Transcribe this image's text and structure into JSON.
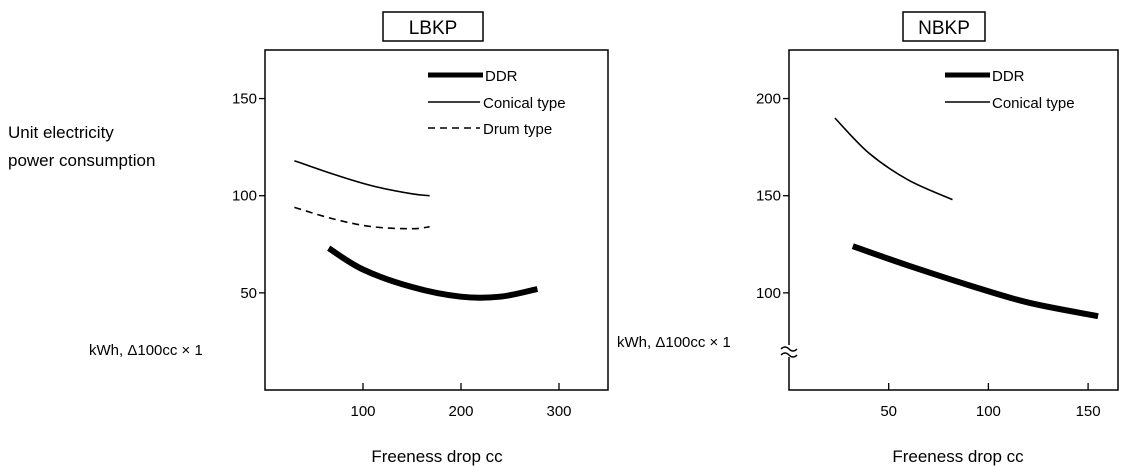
{
  "page": {
    "y_axis_label_line1": "Unit electricity",
    "y_axis_label_line2": "power consumption"
  },
  "chart_data": [
    {
      "type": "line",
      "title": "LBKP",
      "xlabel": "Freeness drop cc",
      "ylabel": "kWh, Δ100cc × 1",
      "xlim": [
        0,
        350
      ],
      "ylim": [
        0,
        175
      ],
      "x_ticks": [
        100,
        200,
        300
      ],
      "y_ticks": [
        50,
        100,
        150
      ],
      "x_tick_labels": [
        "100",
        "200",
        "300"
      ],
      "y_tick_labels": [
        "50",
        "100",
        "150"
      ],
      "legend_position": "top-right",
      "series": [
        {
          "name": "DDR",
          "style": "thick-solid",
          "x": [
            65,
            100,
            150,
            200,
            240,
            278
          ],
          "y": [
            73,
            62,
            53,
            48,
            48,
            52
          ]
        },
        {
          "name": "Conical type",
          "style": "thin-solid",
          "x": [
            30,
            70,
            110,
            150,
            168
          ],
          "y": [
            118,
            111,
            105,
            101,
            100
          ]
        },
        {
          "name": "Drum type",
          "style": "dashed",
          "x": [
            30,
            70,
            110,
            150,
            168
          ],
          "y": [
            94,
            88,
            84,
            83,
            84
          ]
        }
      ]
    },
    {
      "type": "line",
      "title": "NBKP",
      "xlabel": "Freeness drop cc",
      "ylabel": "kWh, Δ100cc × 1",
      "xlim": [
        0,
        165
      ],
      "ylim": [
        50,
        225
      ],
      "x_ticks": [
        50,
        100,
        150
      ],
      "y_ticks": [
        100,
        150,
        200
      ],
      "x_tick_labels": [
        "50",
        "100",
        "150"
      ],
      "y_tick_labels": [
        "100",
        "150",
        "200"
      ],
      "axis_break": true,
      "legend_position": "top-right",
      "series": [
        {
          "name": "DDR",
          "style": "thick-solid",
          "x": [
            32,
            60,
            90,
            120,
            155
          ],
          "y": [
            124,
            114,
            104,
            95,
            88
          ]
        },
        {
          "name": "Conical type",
          "style": "thin-solid",
          "x": [
            23,
            40,
            60,
            82
          ],
          "y": [
            190,
            172,
            158,
            148
          ]
        }
      ]
    }
  ]
}
